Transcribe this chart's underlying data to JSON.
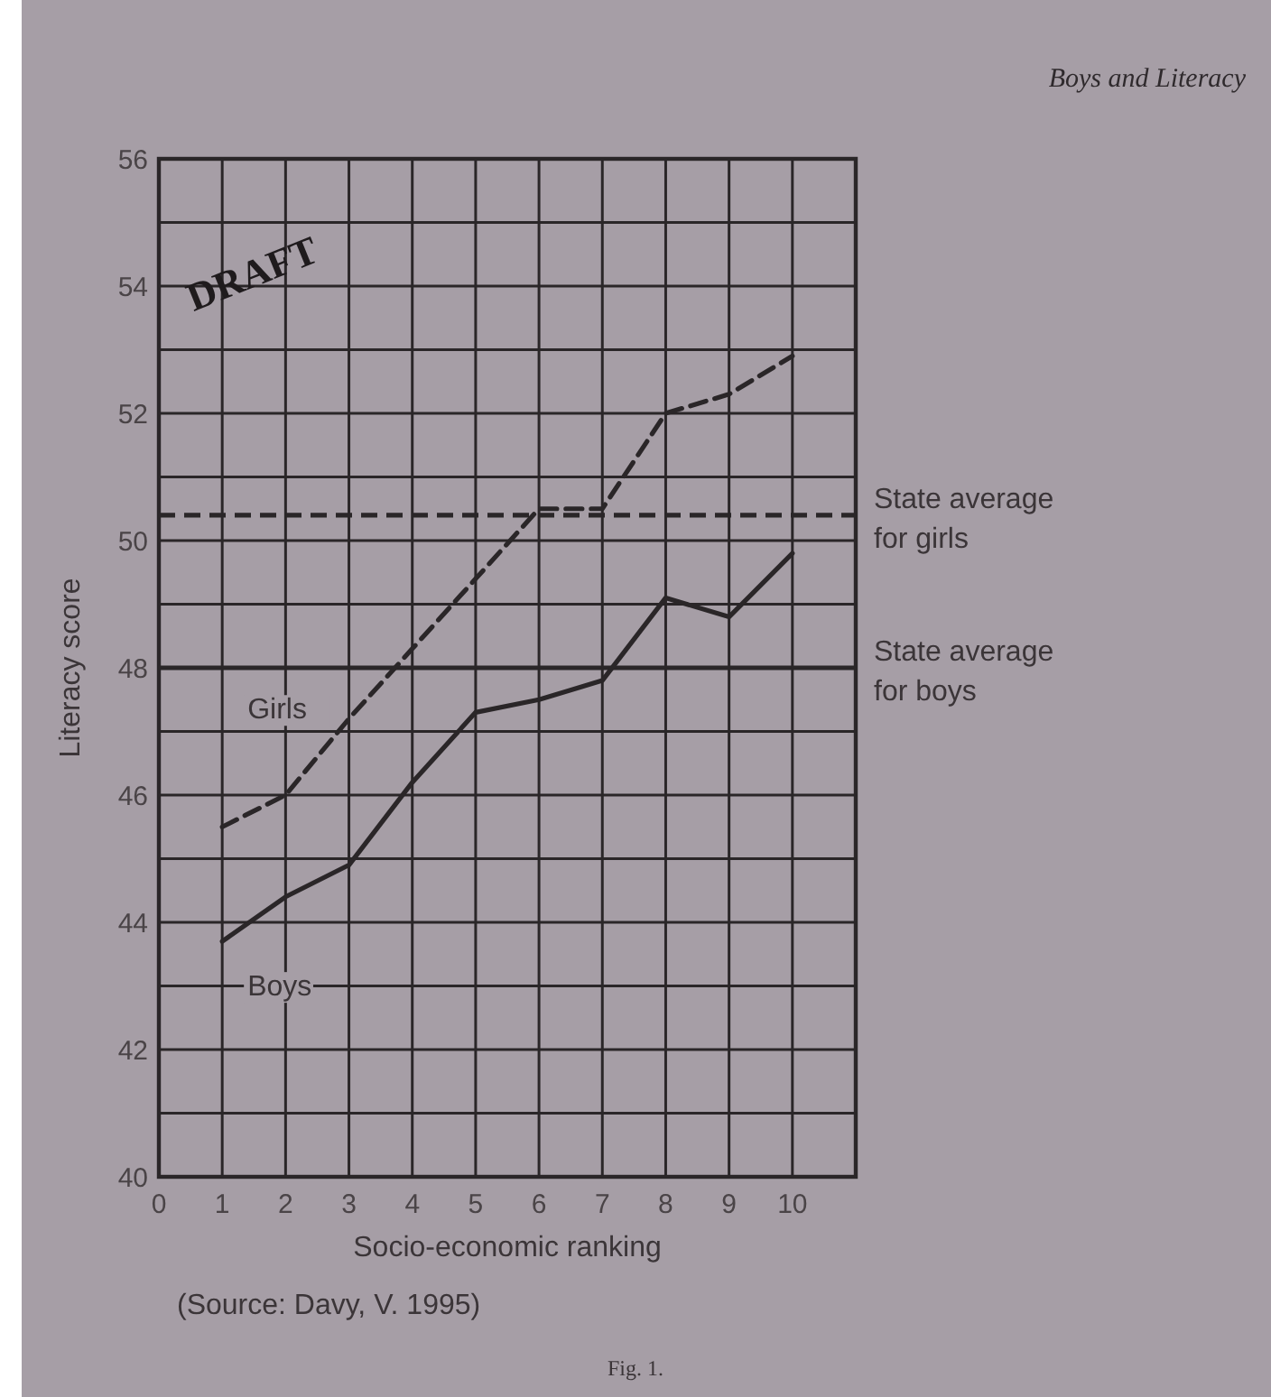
{
  "chart_data": {
    "type": "line",
    "title": "Boys and Literacy",
    "xlabel": "Socio-economic ranking",
    "ylabel": "Literacy score",
    "x": [
      1,
      2,
      3,
      4,
      5,
      6,
      7,
      8,
      9,
      10
    ],
    "series": [
      {
        "name": "Girls",
        "color": "#2a2628",
        "line_style": "dashed",
        "values": [
          45.5,
          46.0,
          47.2,
          48.3,
          49.4,
          50.5,
          50.5,
          52.0,
          52.3,
          52.9
        ]
      },
      {
        "name": "Boys",
        "color": "#2a2628",
        "line_style": "solid",
        "values": [
          43.7,
          44.4,
          44.9,
          46.2,
          47.3,
          47.5,
          47.8,
          49.1,
          48.8,
          49.8
        ]
      }
    ],
    "xlim": [
      0,
      11
    ],
    "xticks": [
      0,
      1,
      2,
      3,
      4,
      5,
      6,
      7,
      8,
      9,
      10,
      {
        "value": 11,
        "label": null
      }
    ],
    "ylim": [
      40,
      56
    ],
    "yticks": [
      40,
      {
        "value": 41,
        "label": null
      },
      42,
      {
        "value": 43,
        "label": null
      },
      44,
      {
        "value": 45,
        "label": null
      },
      46,
      {
        "value": 47,
        "label": null
      },
      48,
      {
        "value": 49,
        "label": null
      },
      50,
      {
        "value": 51,
        "label": null
      },
      52,
      {
        "value": 53,
        "label": null
      },
      54,
      {
        "value": 55,
        "label": null
      },
      56
    ],
    "grid": true,
    "marker": "none",
    "ref_lines": [
      {
        "axis": "y",
        "value": 50.4,
        "label": "State average for girls",
        "line_style": "dashed",
        "color": "#2a2628"
      },
      {
        "axis": "y",
        "value": 48.0,
        "label": "State average for boys",
        "line_style": "solid",
        "color": "#2a2628"
      }
    ],
    "annotations": [
      "DRAFT",
      "(Source: Davy, V. 1995)",
      "Fig. 1."
    ]
  }
}
